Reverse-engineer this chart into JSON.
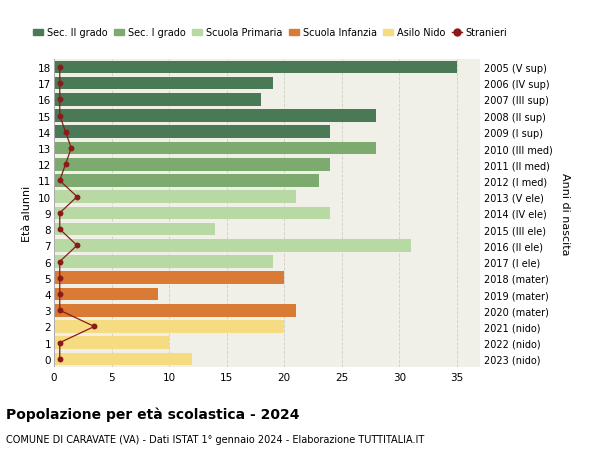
{
  "ages": [
    18,
    17,
    16,
    15,
    14,
    13,
    12,
    11,
    10,
    9,
    8,
    7,
    6,
    5,
    4,
    3,
    2,
    1,
    0
  ],
  "years": [
    "2005 (V sup)",
    "2006 (IV sup)",
    "2007 (III sup)",
    "2008 (II sup)",
    "2009 (I sup)",
    "2010 (III med)",
    "2011 (II med)",
    "2012 (I med)",
    "2013 (V ele)",
    "2014 (IV ele)",
    "2015 (III ele)",
    "2016 (II ele)",
    "2017 (I ele)",
    "2018 (mater)",
    "2019 (mater)",
    "2020 (mater)",
    "2021 (nido)",
    "2022 (nido)",
    "2023 (nido)"
  ],
  "values": [
    35,
    19,
    18,
    28,
    24,
    28,
    24,
    23,
    21,
    24,
    14,
    31,
    19,
    20,
    9,
    21,
    20,
    10,
    12
  ],
  "stranieri_x": [
    0.5,
    0.5,
    0.5,
    0.5,
    1.0,
    1.5,
    1.0,
    0.5,
    2.0,
    0.5,
    0.5,
    2.0,
    0.5,
    0.5,
    0.5,
    0.5,
    3.5,
    0.5,
    0.5
  ],
  "bar_colors": [
    "#4a7a55",
    "#4a7a55",
    "#4a7a55",
    "#4a7a55",
    "#4a7a55",
    "#7daa6e",
    "#7daa6e",
    "#7daa6e",
    "#b9d9a4",
    "#b9d9a4",
    "#b9d9a4",
    "#b9d9a4",
    "#b9d9a4",
    "#d97b35",
    "#d97b35",
    "#d97b35",
    "#f5dc82",
    "#f5dc82",
    "#f5dc82"
  ],
  "color_sec2": "#4a7a55",
  "color_sec1": "#7daa6e",
  "color_prim": "#b9d9a4",
  "color_inf": "#d97b35",
  "color_nido": "#f5dc82",
  "color_stranieri": "#8b1a1a",
  "title": "Popolazione per età scolastica - 2024",
  "subtitle": "COMUNE DI CARAVATE (VA) - Dati ISTAT 1° gennaio 2024 - Elaborazione TUTTITALIA.IT",
  "ylabel_left": "Età alunni",
  "ylabel_right": "Anni di nascita",
  "xlim": [
    0,
    37
  ],
  "xticks": [
    0,
    5,
    10,
    15,
    20,
    25,
    30,
    35
  ],
  "legend_labels": [
    "Sec. II grado",
    "Sec. I grado",
    "Scuola Primaria",
    "Scuola Infanzia",
    "Asilo Nido",
    "Stranieri"
  ],
  "background_color": "#ffffff",
  "plot_bg_color": "#f0f0e8",
  "grid_color": "#d0d0c0"
}
